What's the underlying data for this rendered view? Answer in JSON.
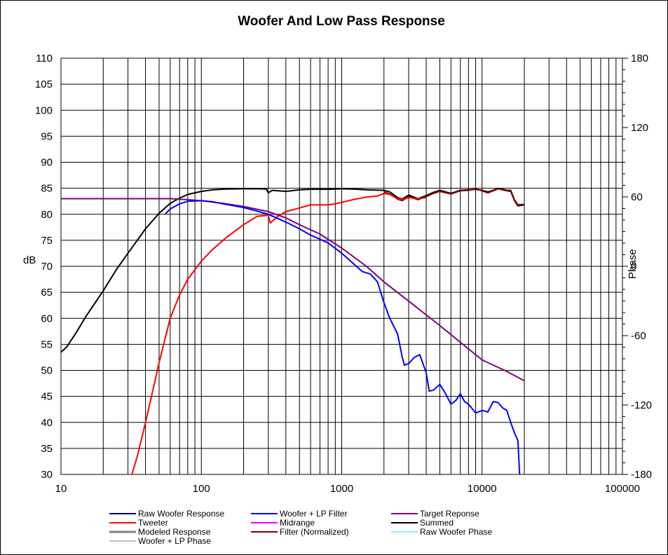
{
  "chart_data": {
    "type": "line",
    "title": "Woofer  And Low Pass Response",
    "xlabel": "",
    "ylabel": "dB",
    "y2label": "Phase",
    "xscale": "log",
    "xlim": [
      10,
      100000
    ],
    "ylim": [
      30,
      110
    ],
    "y2lim": [
      -180,
      180
    ],
    "grid": true,
    "legend_position": "bottom",
    "x_ticks": [
      10,
      100,
      1000,
      10000,
      100000
    ],
    "x_tick_labels": [
      "10",
      "100",
      "1000",
      "10000",
      "100000"
    ],
    "y_ticks": [
      30,
      35,
      40,
      45,
      50,
      55,
      60,
      65,
      70,
      75,
      80,
      85,
      90,
      95,
      100,
      105,
      110
    ],
    "y_tick_labels": [
      "30",
      "35",
      "40",
      "45",
      "50",
      "55",
      "60",
      "65",
      "70",
      "75",
      "80",
      "85",
      "90",
      "95",
      "100",
      "105",
      "110"
    ],
    "y2_ticks": [
      -180,
      -120,
      -60,
      0,
      60,
      120,
      180
    ],
    "y2_tick_labels": [
      "-180",
      "-120",
      "-60",
      "0",
      "60",
      "120",
      "180"
    ],
    "legend": [
      {
        "name": "Raw Woofer Response",
        "color": "#000080",
        "width": 2
      },
      {
        "name": "Woofer + LP Filter",
        "color": "#0000ff",
        "width": 2
      },
      {
        "name": "Target Reponse",
        "color": "#800080",
        "width": 2
      },
      {
        "name": "Tweeter",
        "color": "#ff0000",
        "width": 2
      },
      {
        "name": "Midrange",
        "color": "#ff00ff",
        "width": 2
      },
      {
        "name": "Summed",
        "color": "#000000",
        "width": 2
      },
      {
        "name": "Modeled Response",
        "color": "#808080",
        "width": 3
      },
      {
        "name": "Filter (Normalized)",
        "color": "#800000",
        "width": 2
      },
      {
        "name": "Raw Woofer Phase",
        "color": "#33ccff",
        "width": 1
      },
      {
        "name": "Woofer + LP  Phase",
        "color": "#808080",
        "width": 1
      }
    ],
    "series": [
      {
        "key": "summed",
        "color": "#000000",
        "x": [
          10,
          11,
          13,
          15,
          20,
          25,
          30,
          40,
          50,
          60,
          70,
          80,
          100,
          120,
          150,
          200,
          250,
          290,
          300,
          320,
          400,
          500,
          600,
          800,
          1000,
          1200,
          1500,
          2000,
          2200,
          2500,
          2700,
          3000,
          3500,
          4000,
          4500,
          5000,
          6000,
          7000,
          8000,
          9000,
          10000,
          11000,
          12000,
          13000,
          14000,
          15000,
          16000,
          17000,
          18000,
          20000
        ],
        "y": [
          53.5,
          54.5,
          57.5,
          60.3,
          65.3,
          69.5,
          72.5,
          77.2,
          80.2,
          82.1,
          83.1,
          83.8,
          84.4,
          84.7,
          84.85,
          84.9,
          84.9,
          84.85,
          84.1,
          84.6,
          84.4,
          84.7,
          84.8,
          84.8,
          84.9,
          84.85,
          84.7,
          84.6,
          84.3,
          83.2,
          82.9,
          83.7,
          83.0,
          83.6,
          84.2,
          84.6,
          84.0,
          84.6,
          84.7,
          84.8,
          84.6,
          84.3,
          84.6,
          85.0,
          84.8,
          84.6,
          84.6,
          82.8,
          81.8,
          81.9
        ]
      },
      {
        "key": "filter_normalized",
        "color": "#800000",
        "x": [
          2000,
          2200,
          2500,
          2700,
          3000,
          3500,
          4000,
          4500,
          5000,
          6000,
          7000,
          8000,
          9000,
          10000,
          11000,
          12000,
          13000,
          14000,
          15000,
          16000,
          17000,
          18000,
          20000
        ],
        "y": [
          84.3,
          83.9,
          82.9,
          82.6,
          83.4,
          82.8,
          83.4,
          84.0,
          84.4,
          83.9,
          84.5,
          84.6,
          84.9,
          84.5,
          84.1,
          84.5,
          84.9,
          84.7,
          84.5,
          84.4,
          82.6,
          81.6,
          81.8
        ]
      },
      {
        "key": "tweeter",
        "color": "#ff0000",
        "x": [
          32,
          35,
          40,
          45,
          50,
          55,
          60,
          70,
          80,
          100,
          120,
          150,
          200,
          250,
          300,
          310,
          330,
          350,
          400,
          500,
          600,
          700,
          800,
          900,
          1000,
          1200,
          1500,
          1800,
          2000,
          2200,
          2500,
          2700,
          3000,
          3500,
          4000
        ],
        "y": [
          30,
          33.5,
          40,
          46,
          51.5,
          56,
          60,
          64.5,
          67.5,
          71,
          73.2,
          75.5,
          78,
          79.6,
          79.8,
          78.3,
          79.0,
          79.6,
          80.5,
          81.2,
          81.8,
          81.8,
          81.8,
          82.0,
          82.3,
          82.8,
          83.3,
          83.5,
          84.0,
          83.8,
          83.0,
          82.8,
          83.2,
          83.0,
          83.2
        ]
      },
      {
        "key": "target",
        "color": "#800080",
        "x": [
          10,
          20,
          40,
          60,
          70,
          80,
          100,
          150,
          200,
          300,
          400,
          500,
          700,
          1000,
          1500,
          2000,
          3000,
          5000,
          7000,
          10000,
          15000,
          20000
        ],
        "y": [
          83.0,
          83.0,
          83.0,
          83.0,
          82.9,
          82.8,
          82.6,
          82.0,
          81.5,
          80.5,
          79.3,
          78.0,
          76.2,
          73.5,
          70.0,
          67.0,
          63.3,
          58.6,
          55.4,
          52.0,
          49.8,
          48.0
        ]
      },
      {
        "key": "woofer_lp",
        "color": "#0000ff",
        "x": [
          55,
          60,
          70,
          80,
          100,
          120,
          150,
          200,
          250,
          300,
          400,
          500,
          600,
          700,
          800,
          1000,
          1200,
          1400,
          1600,
          1800,
          2000,
          2200,
          2500,
          2700,
          2800,
          3000,
          3300,
          3600,
          4000,
          4200,
          4500,
          5000,
          5500,
          6000,
          6500,
          7000,
          7500,
          8000,
          9000,
          10000,
          11000,
          12000,
          13000,
          14000,
          15000,
          16000,
          17000,
          18000,
          18500
        ],
        "y": [
          80.0,
          81.0,
          82.0,
          82.5,
          82.6,
          82.4,
          81.9,
          81.3,
          80.6,
          80.0,
          78.5,
          77.2,
          76.0,
          75.2,
          74.5,
          72.5,
          70.6,
          69.0,
          68.5,
          67.0,
          63.0,
          60.0,
          57.0,
          52.5,
          51.0,
          51.3,
          52.5,
          53.0,
          49.5,
          46.0,
          46.2,
          47.3,
          45.5,
          43.5,
          44.2,
          45.5,
          44.0,
          43.5,
          41.8,
          42.3,
          42.0,
          44.0,
          43.8,
          42.8,
          42.3,
          40.0,
          38.0,
          36.5,
          30.0
        ]
      }
    ]
  }
}
